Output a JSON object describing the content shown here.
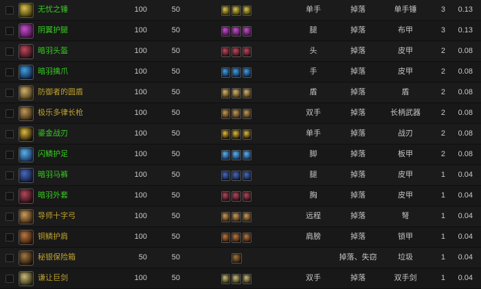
{
  "colors": {
    "quality_green": "#36cd21",
    "quality_gold": "#bfa22e",
    "row_bg": "#1b1b1b",
    "page_bg": "#0e0e0e",
    "cell_text": "#c6c6c6"
  },
  "table": {
    "rows": [
      {
        "name": "无忧之锤",
        "name_color": "green",
        "v1": "100",
        "v2": "50",
        "mini_count": 3,
        "slot": "单手",
        "source": "掉落",
        "type": "单手锤",
        "count": "3",
        "pct": "0.13",
        "icon_name": "mace-icon",
        "icon_in": "#d8c050",
        "icon_out": "#3a3206"
      },
      {
        "name": "阴翼护腿",
        "name_color": "green",
        "v1": "100",
        "v2": "50",
        "mini_count": 3,
        "slot": "腿",
        "source": "掉落",
        "type": "布甲",
        "count": "3",
        "pct": "0.13",
        "icon_name": "cloth-legs-icon",
        "icon_in": "#c050c8",
        "icon_out": "#471049"
      },
      {
        "name": "暗羽头盔",
        "name_color": "green",
        "v1": "100",
        "v2": "50",
        "mini_count": 3,
        "slot": "头",
        "source": "掉落",
        "type": "皮甲",
        "count": "2",
        "pct": "0.08",
        "icon_name": "helm-icon",
        "icon_in": "#c04858",
        "icon_out": "#281018"
      },
      {
        "name": "暗羽擒爪",
        "name_color": "green",
        "v1": "100",
        "v2": "50",
        "mini_count": 3,
        "slot": "手",
        "source": "掉落",
        "type": "皮甲",
        "count": "2",
        "pct": "0.08",
        "icon_name": "claws-icon",
        "icon_in": "#40a0e0",
        "icon_out": "#102040"
      },
      {
        "name": "防御者的圆盾",
        "name_color": "gold",
        "v1": "100",
        "v2": "50",
        "mini_count": 3,
        "slot": "盾",
        "source": "掉落",
        "type": "盾",
        "count": "2",
        "pct": "0.08",
        "icon_name": "shield-icon",
        "icon_in": "#d0b070",
        "icon_out": "#403010"
      },
      {
        "name": "极乐多律长枪",
        "name_color": "gold",
        "v1": "100",
        "v2": "50",
        "mini_count": 3,
        "slot": "双手",
        "source": "掉落",
        "type": "长柄武器",
        "count": "2",
        "pct": "0.08",
        "icon_name": "polearm-icon",
        "icon_in": "#c09858",
        "icon_out": "#342410"
      },
      {
        "name": "鎏金战刃",
        "name_color": "green",
        "v1": "100",
        "v2": "50",
        "mini_count": 3,
        "slot": "单手",
        "source": "掉落",
        "type": "战刃",
        "count": "2",
        "pct": "0.08",
        "icon_name": "warblade-icon",
        "icon_in": "#e0b83a",
        "icon_out": "#1a1408"
      },
      {
        "name": "闪鳞护足",
        "name_color": "green",
        "v1": "100",
        "v2": "50",
        "mini_count": 3,
        "slot": "脚",
        "source": "掉落",
        "type": "板甲",
        "count": "2",
        "pct": "0.08",
        "icon_name": "boots-icon",
        "icon_in": "#58b0e8",
        "icon_out": "#163058"
      },
      {
        "name": "暗羽马裤",
        "name_color": "green",
        "v1": "100",
        "v2": "50",
        "mini_count": 3,
        "slot": "腿",
        "source": "掉落",
        "type": "皮甲",
        "count": "1",
        "pct": "0.04",
        "icon_name": "leather-legs-icon",
        "icon_in": "#4868b8",
        "icon_out": "#101a38"
      },
      {
        "name": "暗羽外套",
        "name_color": "green",
        "v1": "100",
        "v2": "50",
        "mini_count": 3,
        "slot": "胸",
        "source": "掉落",
        "type": "皮甲",
        "count": "1",
        "pct": "0.04",
        "icon_name": "chest-icon",
        "icon_in": "#b04858",
        "icon_out": "#2a0c14"
      },
      {
        "name": "导师十字弓",
        "name_color": "gold",
        "v1": "100",
        "v2": "50",
        "mini_count": 3,
        "slot": "远程",
        "source": "掉落",
        "type": "弩",
        "count": "1",
        "pct": "0.04",
        "icon_name": "crossbow-icon",
        "icon_in": "#c89a58",
        "icon_out": "#382410"
      },
      {
        "name": "铜鳞护肩",
        "name_color": "gold",
        "v1": "100",
        "v2": "50",
        "mini_count": 3,
        "slot": "肩膀",
        "source": "掉落",
        "type": "锁甲",
        "count": "1",
        "pct": "0.04",
        "icon_name": "shoulders-icon",
        "icon_in": "#b87840",
        "icon_out": "#30180a"
      },
      {
        "name": "秘银保险箱",
        "name_color": "gold",
        "v1": "50",
        "v2": "50",
        "mini_count": 1,
        "slot": "",
        "source": "掉落、失窃",
        "type": "垃圾",
        "count": "1",
        "pct": "0.04",
        "icon_name": "lockbox-icon",
        "icon_in": "#a07840",
        "icon_out": "#241408"
      },
      {
        "name": "谦让巨剑",
        "name_color": "gold",
        "v1": "100",
        "v2": "50",
        "mini_count": 3,
        "slot": "双手",
        "source": "掉落",
        "type": "双手剑",
        "count": "1",
        "pct": "0.04",
        "icon_name": "greatsword-icon",
        "icon_in": "#c8b878",
        "icon_out": "#2a2812"
      }
    ]
  }
}
